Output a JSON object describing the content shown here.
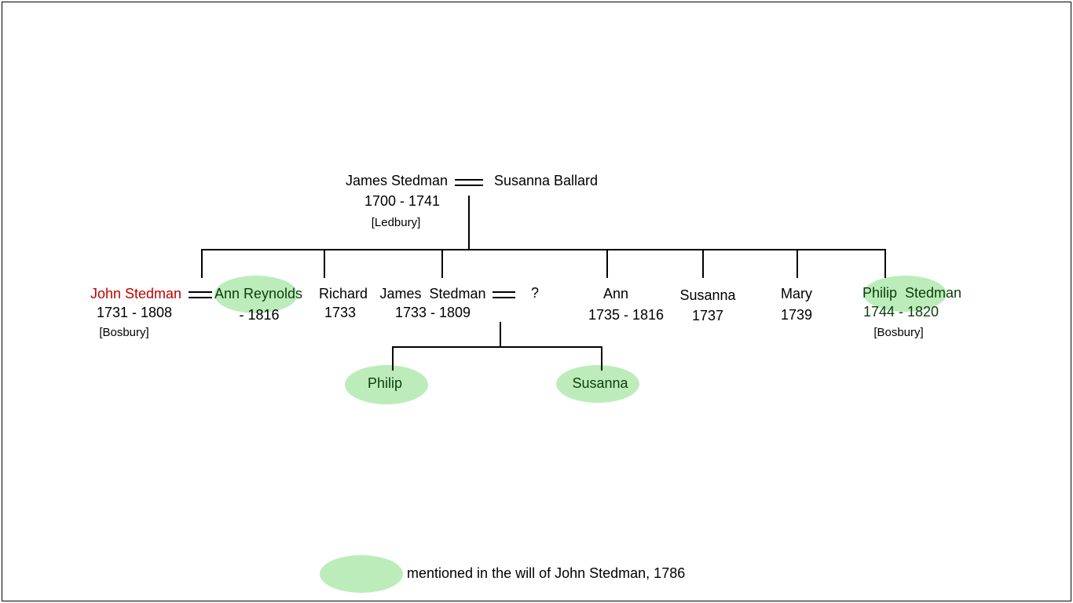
{
  "parents": {
    "father": {
      "name": "James Stedman",
      "dates": "1700 - 1741",
      "place": "[Ledbury]"
    },
    "mother": {
      "name": "Susanna Ballard"
    }
  },
  "children": [
    {
      "name": "John Stedman",
      "dates": "1731 - 1808",
      "place": "[Bosbury]",
      "spouse": {
        "name": "Ann Reynolds",
        "dates": "- 1816"
      }
    },
    {
      "name": "Richard",
      "dates": "1733"
    },
    {
      "name": "James  Stedman",
      "dates": "1733 - 1809",
      "spouse": {
        "name": "?"
      }
    },
    {
      "name": "Ann",
      "dates": "1735 - 1816"
    },
    {
      "name": "Susanna",
      "dates": "1737"
    },
    {
      "name": "Mary",
      "dates": "1739"
    },
    {
      "name": "Philip  Stedman",
      "dates": "1744 - 1820",
      "place": "[Bosbury]"
    }
  ],
  "grandchildren": [
    {
      "name": "Philip"
    },
    {
      "name": "Susanna"
    }
  ],
  "legend": {
    "label": "mentioned in the will of John Stedman, 1786"
  }
}
